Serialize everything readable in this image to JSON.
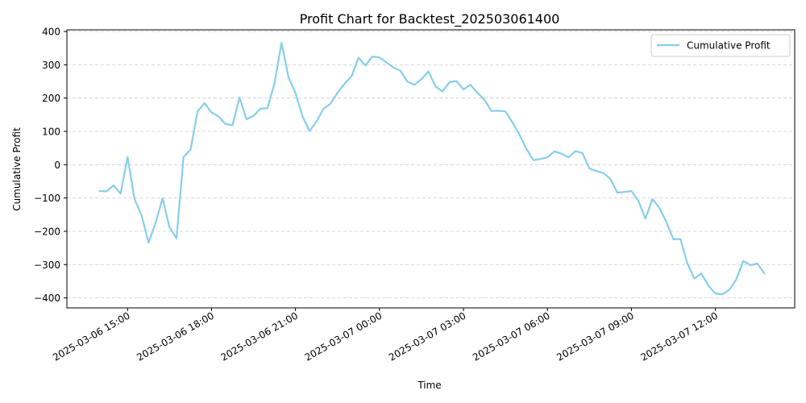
{
  "chart_data": {
    "type": "line",
    "title": "Profit Chart for Backtest_202503061400",
    "xlabel": "Time",
    "ylabel": "Cumulative Profit",
    "ylim": [
      -430,
      405
    ],
    "xlim": [
      "2025-03-06 12:50",
      "2025-03-07 14:50"
    ],
    "grid": "y-dashed",
    "legend_position": "top-right",
    "x_ticks": [
      "2025-03-06 15:00",
      "2025-03-06 18:00",
      "2025-03-06 21:00",
      "2025-03-07 00:00",
      "2025-03-07 03:00",
      "2025-03-07 06:00",
      "2025-03-07 09:00",
      "2025-03-07 12:00"
    ],
    "y_ticks": [
      -400,
      -300,
      -200,
      -100,
      0,
      100,
      200,
      300,
      400
    ],
    "series": [
      {
        "name": "Cumulative Profit",
        "color": "#87ceeb",
        "x": [
          "2025-03-06 14:00",
          "2025-03-06 14:15",
          "2025-03-06 14:30",
          "2025-03-06 14:45",
          "2025-03-06 15:00",
          "2025-03-06 15:15",
          "2025-03-06 15:30",
          "2025-03-06 15:45",
          "2025-03-06 16:00",
          "2025-03-06 16:15",
          "2025-03-06 16:30",
          "2025-03-06 16:45",
          "2025-03-06 17:00",
          "2025-03-06 17:15",
          "2025-03-06 17:30",
          "2025-03-06 17:45",
          "2025-03-06 18:00",
          "2025-03-06 18:15",
          "2025-03-06 18:30",
          "2025-03-06 18:45",
          "2025-03-06 19:00",
          "2025-03-06 19:15",
          "2025-03-06 19:30",
          "2025-03-06 19:45",
          "2025-03-06 20:00",
          "2025-03-06 20:15",
          "2025-03-06 20:30",
          "2025-03-06 20:45",
          "2025-03-06 21:00",
          "2025-03-06 21:15",
          "2025-03-06 21:30",
          "2025-03-06 21:45",
          "2025-03-06 22:00",
          "2025-03-06 22:15",
          "2025-03-06 22:30",
          "2025-03-06 22:45",
          "2025-03-06 23:00",
          "2025-03-06 23:15",
          "2025-03-06 23:30",
          "2025-03-06 23:45",
          "2025-03-07 00:00",
          "2025-03-07 00:15",
          "2025-03-07 00:30",
          "2025-03-07 00:45",
          "2025-03-07 01:00",
          "2025-03-07 01:15",
          "2025-03-07 01:30",
          "2025-03-07 01:45",
          "2025-03-07 02:00",
          "2025-03-07 02:15",
          "2025-03-07 02:30",
          "2025-03-07 02:45",
          "2025-03-07 03:00",
          "2025-03-07 03:15",
          "2025-03-07 03:30",
          "2025-03-07 03:45",
          "2025-03-07 04:00",
          "2025-03-07 04:15",
          "2025-03-07 04:30",
          "2025-03-07 04:45",
          "2025-03-07 05:00",
          "2025-03-07 05:15",
          "2025-03-07 05:30",
          "2025-03-07 05:45",
          "2025-03-07 06:00",
          "2025-03-07 06:15",
          "2025-03-07 06:30",
          "2025-03-07 06:45",
          "2025-03-07 07:00",
          "2025-03-07 07:15",
          "2025-03-07 07:30",
          "2025-03-07 07:45",
          "2025-03-07 08:00",
          "2025-03-07 08:15",
          "2025-03-07 08:30",
          "2025-03-07 08:45",
          "2025-03-07 09:00",
          "2025-03-07 09:15",
          "2025-03-07 09:30",
          "2025-03-07 09:45",
          "2025-03-07 10:00",
          "2025-03-07 10:15",
          "2025-03-07 10:30",
          "2025-03-07 10:45",
          "2025-03-07 11:00",
          "2025-03-07 11:15",
          "2025-03-07 11:30",
          "2025-03-07 11:45",
          "2025-03-07 12:00",
          "2025-03-07 12:15",
          "2025-03-07 12:30",
          "2025-03-07 12:45",
          "2025-03-07 13:00",
          "2025-03-07 13:15",
          "2025-03-07 13:30",
          "2025-03-07 13:45"
        ],
        "values": [
          -79,
          -80,
          -62,
          -87,
          23,
          -103,
          -152,
          -234,
          -175,
          -101,
          -188,
          -221,
          23,
          45,
          160,
          185,
          157,
          145,
          122,
          119,
          202,
          136,
          147,
          168,
          170,
          245,
          366,
          262,
          215,
          145,
          101,
          130,
          168,
          183,
          216,
          243,
          265,
          321,
          298,
          325,
          322,
          307,
          292,
          282,
          249,
          240,
          257,
          280,
          235,
          220,
          248,
          251,
          226,
          240,
          216,
          195,
          161,
          162,
          160,
          127,
          90,
          47,
          14,
          17,
          22,
          40,
          33,
          22,
          41,
          35,
          -11,
          -19,
          -25,
          -43,
          -84,
          -82,
          -79,
          -109,
          -162,
          -103,
          -130,
          -172,
          -224,
          -223,
          -297,
          -342,
          -327,
          -363,
          -387,
          -389,
          -375,
          -344,
          -289,
          -302,
          -297,
          -327
        ]
      }
    ]
  }
}
